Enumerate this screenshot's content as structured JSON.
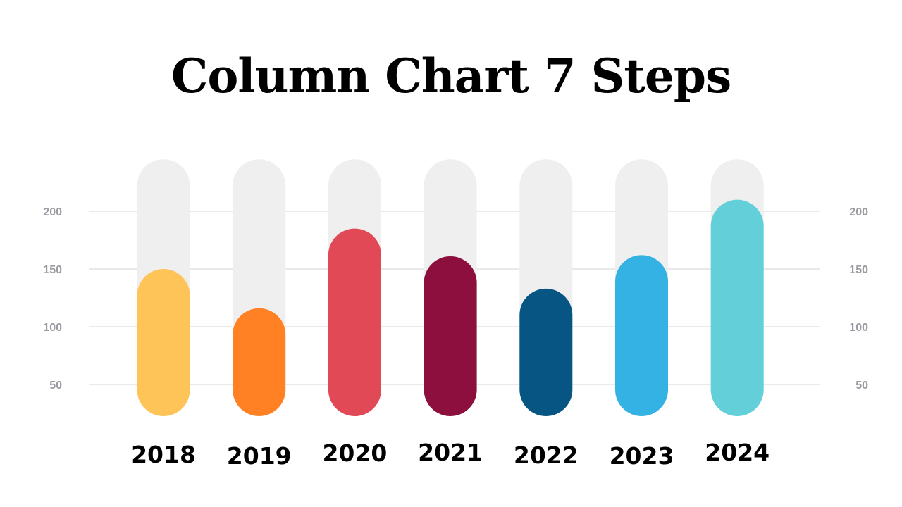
{
  "title": "Column Chart 7 Steps",
  "chart_data": {
    "type": "bar",
    "title": "Column Chart 7 Steps",
    "xlabel": "",
    "ylabel": "",
    "categories": [
      "2018",
      "2019",
      "2020",
      "2021",
      "2022",
      "2023",
      "2024"
    ],
    "values": [
      150,
      116,
      185,
      161,
      133,
      162,
      210
    ],
    "track_max": 245,
    "ylim": [
      25,
      245
    ],
    "yticks": [
      50,
      100,
      150,
      200
    ],
    "ytick_labels": [
      "50",
      "100",
      "150",
      "200"
    ],
    "grid": true,
    "legend": "none",
    "colors": [
      "#FEC458",
      "#FF8124",
      "#E04955",
      "#8C0F3D",
      "#065582",
      "#34B2E3",
      "#62CFD9"
    ],
    "track_color": "#EFEFEF",
    "grid_color": "#D3D3D3"
  }
}
